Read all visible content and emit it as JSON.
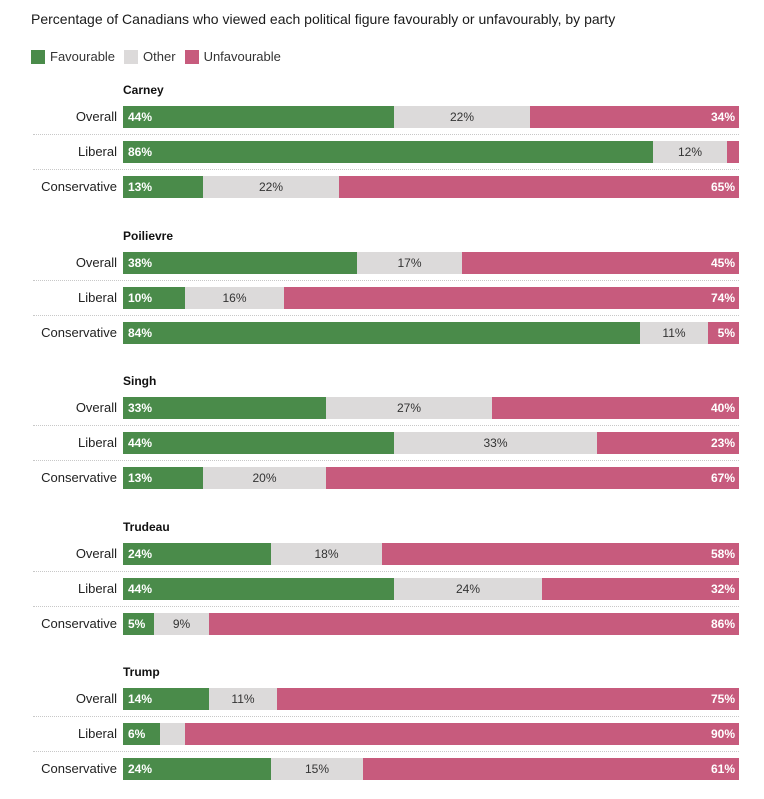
{
  "title": "Percentage of Canadians who viewed each political figure favourably or unfavourably, by party",
  "legend": [
    {
      "key": "favourable",
      "label": "Favourable",
      "color": "#4a8b4a"
    },
    {
      "key": "other",
      "label": "Other",
      "color": "#dcdada"
    },
    {
      "key": "unfavourable",
      "label": "Unfavourable",
      "color": "#c75b7d"
    }
  ],
  "chart_data": {
    "type": "bar",
    "orientation": "horizontal-stacked-100",
    "title": "Percentage of Canadians who viewed each political figure favourably or unfavourably, by party",
    "series_order": [
      "favourable",
      "other",
      "unfavourable"
    ],
    "groups": [
      {
        "name": "Carney",
        "rows": [
          {
            "label": "Overall",
            "favourable": 44,
            "other": 22,
            "unfavourable": 34,
            "fav_text": "44%",
            "other_text": "22%",
            "unfav_text": "34%"
          },
          {
            "label": "Liberal",
            "favourable": 86,
            "other": 12,
            "unfavourable": 2,
            "fav_text": "86%",
            "other_text": "12%",
            "unfav_text": ""
          },
          {
            "label": "Conservative",
            "favourable": 13,
            "other": 22,
            "unfavourable": 65,
            "fav_text": "13%",
            "other_text": "22%",
            "unfav_text": "65%"
          }
        ]
      },
      {
        "name": "Poilievre",
        "rows": [
          {
            "label": "Overall",
            "favourable": 38,
            "other": 17,
            "unfavourable": 45,
            "fav_text": "38%",
            "other_text": "17%",
            "unfav_text": "45%"
          },
          {
            "label": "Liberal",
            "favourable": 10,
            "other": 16,
            "unfavourable": 74,
            "fav_text": "10%",
            "other_text": "16%",
            "unfav_text": "74%"
          },
          {
            "label": "Conservative",
            "favourable": 84,
            "other": 11,
            "unfavourable": 5,
            "fav_text": "84%",
            "other_text": "11%",
            "unfav_text": "5%"
          }
        ]
      },
      {
        "name": "Singh",
        "rows": [
          {
            "label": "Overall",
            "favourable": 33,
            "other": 27,
            "unfavourable": 40,
            "fav_text": "33%",
            "other_text": "27%",
            "unfav_text": "40%"
          },
          {
            "label": "Liberal",
            "favourable": 44,
            "other": 33,
            "unfavourable": 23,
            "fav_text": "44%",
            "other_text": "33%",
            "unfav_text": "23%"
          },
          {
            "label": "Conservative",
            "favourable": 13,
            "other": 20,
            "unfavourable": 67,
            "fav_text": "13%",
            "other_text": "20%",
            "unfav_text": "67%"
          }
        ]
      },
      {
        "name": "Trudeau",
        "rows": [
          {
            "label": "Overall",
            "favourable": 24,
            "other": 18,
            "unfavourable": 58,
            "fav_text": "24%",
            "other_text": "18%",
            "unfav_text": "58%"
          },
          {
            "label": "Liberal",
            "favourable": 44,
            "other": 24,
            "unfavourable": 32,
            "fav_text": "44%",
            "other_text": "24%",
            "unfav_text": "32%"
          },
          {
            "label": "Conservative",
            "favourable": 5,
            "other": 9,
            "unfavourable": 86,
            "fav_text": "5%",
            "other_text": "9%",
            "unfav_text": "86%"
          }
        ]
      },
      {
        "name": "Trump",
        "rows": [
          {
            "label": "Overall",
            "favourable": 14,
            "other": 11,
            "unfavourable": 75,
            "fav_text": "14%",
            "other_text": "11%",
            "unfav_text": "75%"
          },
          {
            "label": "Liberal",
            "favourable": 6,
            "other": 4,
            "unfavourable": 90,
            "fav_text": "6%",
            "other_text": "",
            "unfav_text": "90%"
          },
          {
            "label": "Conservative",
            "favourable": 24,
            "other": 15,
            "unfavourable": 61,
            "fav_text": "24%",
            "other_text": "15%",
            "unfav_text": "61%"
          }
        ]
      }
    ]
  }
}
